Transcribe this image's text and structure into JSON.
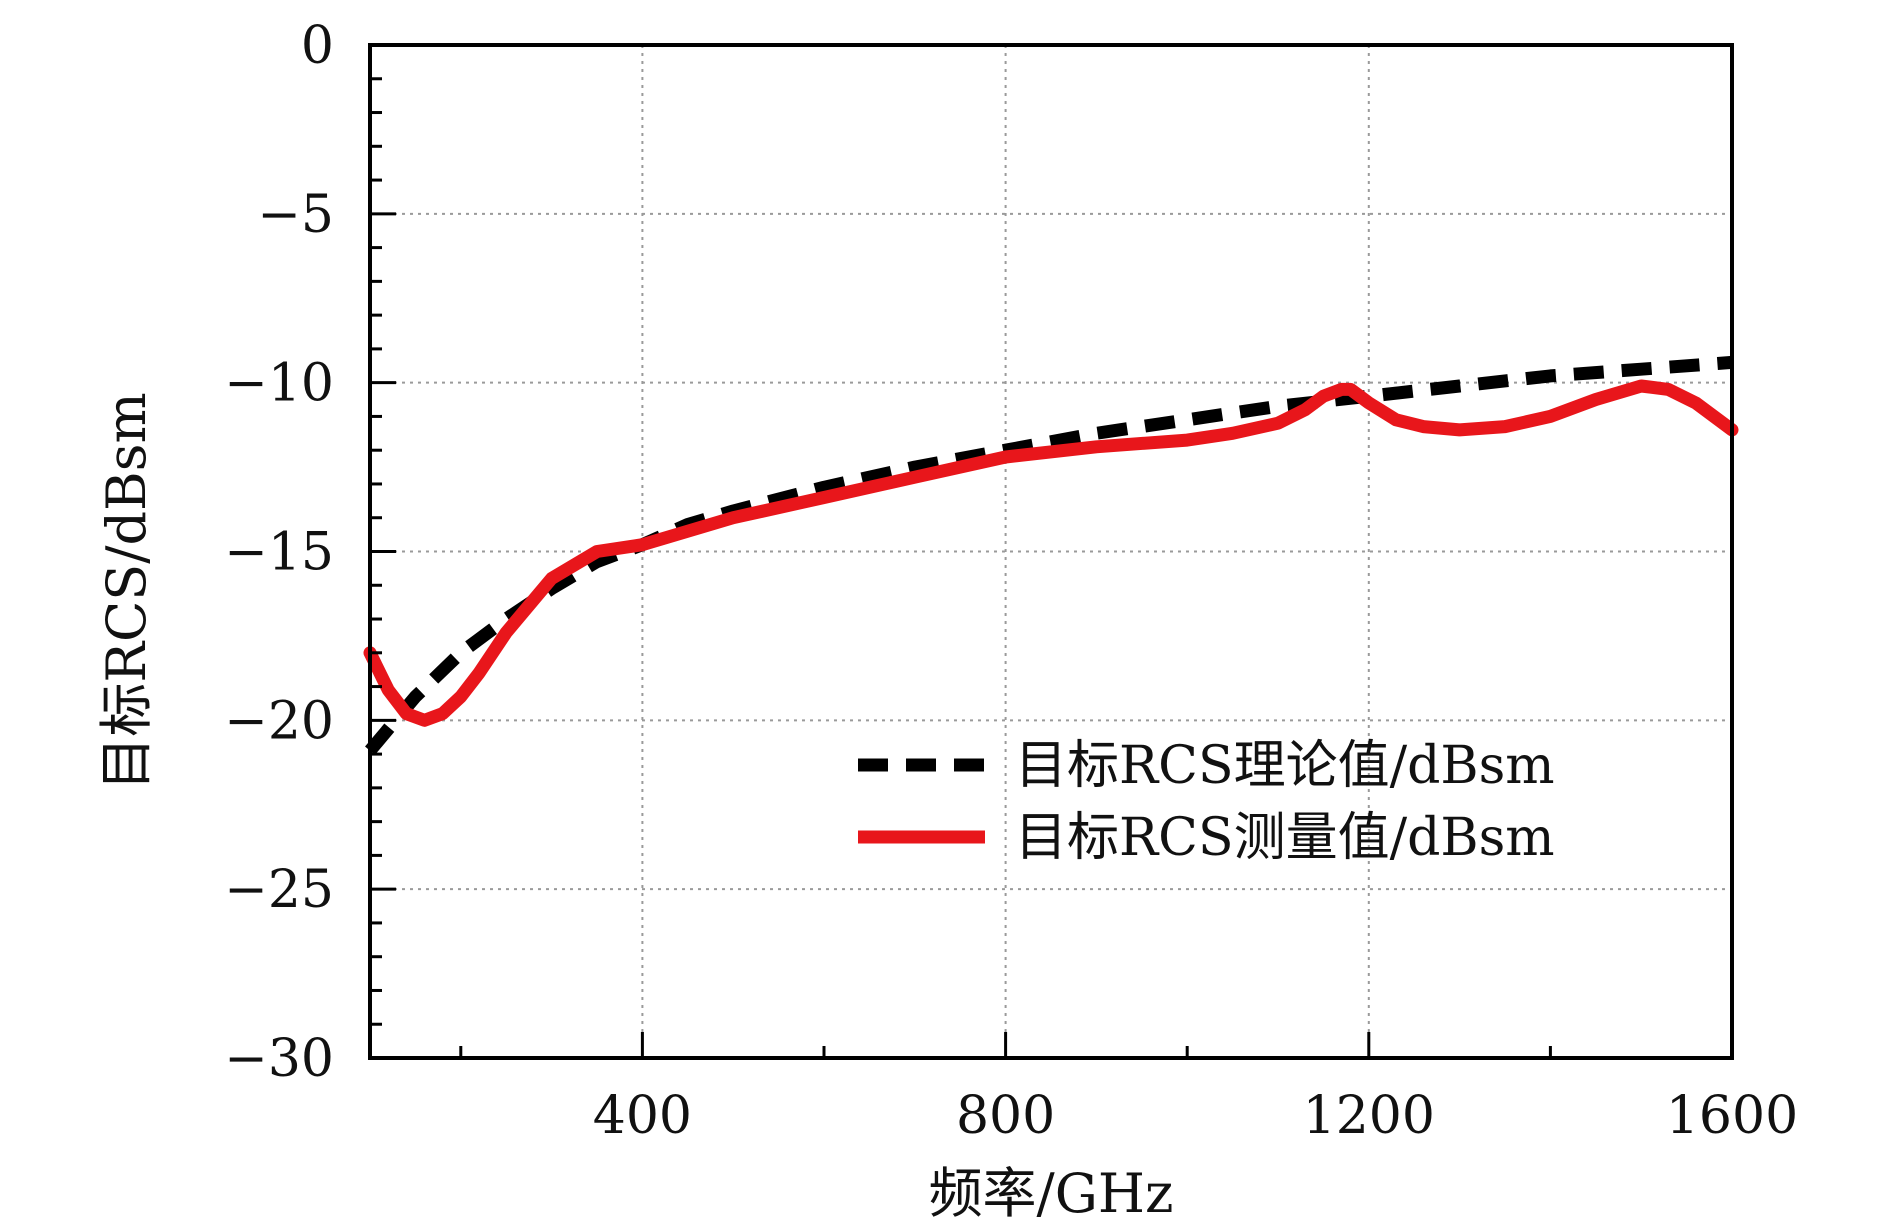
{
  "chart_data": {
    "type": "line",
    "title": "",
    "xlabel": "频率/GHz",
    "ylabel": "目标RCS/dBsm",
    "xlim": [
      100,
      1600
    ],
    "ylim": [
      -30,
      0
    ],
    "xticks": [
      400,
      800,
      1200,
      1600
    ],
    "xtick_labels": [
      "400",
      "800",
      "1200",
      "1600"
    ],
    "yticks": [
      0,
      -5,
      -10,
      -15,
      -20,
      -25,
      -30
    ],
    "ytick_labels": [
      "0",
      "−5",
      "−10",
      "−15",
      "−20",
      "−25",
      "−30"
    ],
    "grid": true,
    "legend_position": "lower-right",
    "series": [
      {
        "name": "目标RCS理论值/dBsm",
        "style": "dashed",
        "color": "#000000",
        "x": [
          100,
          150,
          200,
          250,
          300,
          350,
          400,
          450,
          500,
          600,
          700,
          800,
          900,
          1000,
          1100,
          1200,
          1300,
          1400,
          1500,
          1600
        ],
        "y": [
          -20.9,
          -19.3,
          -18.0,
          -17.0,
          -16.1,
          -15.3,
          -14.8,
          -14.2,
          -13.8,
          -13.1,
          -12.5,
          -12.0,
          -11.5,
          -11.1,
          -10.7,
          -10.4,
          -10.1,
          -9.8,
          -9.6,
          -9.4
        ]
      },
      {
        "name": "目标RCS测量值/dBsm",
        "style": "solid",
        "color": "#e8161b",
        "x": [
          100,
          120,
          140,
          160,
          180,
          200,
          220,
          250,
          300,
          350,
          400,
          450,
          500,
          600,
          700,
          800,
          900,
          1000,
          1050,
          1100,
          1130,
          1150,
          1170,
          1180,
          1200,
          1230,
          1260,
          1300,
          1350,
          1400,
          1450,
          1500,
          1530,
          1560,
          1600
        ],
        "y": [
          -18.0,
          -19.1,
          -19.8,
          -20.0,
          -19.8,
          -19.3,
          -18.6,
          -17.4,
          -15.8,
          -15.0,
          -14.8,
          -14.4,
          -14.0,
          -13.4,
          -12.8,
          -12.2,
          -11.9,
          -11.7,
          -11.5,
          -11.2,
          -10.8,
          -10.4,
          -10.2,
          -10.2,
          -10.6,
          -11.1,
          -11.3,
          -11.4,
          -11.3,
          -11.0,
          -10.5,
          -10.1,
          -10.2,
          -10.6,
          -11.4
        ]
      }
    ]
  }
}
